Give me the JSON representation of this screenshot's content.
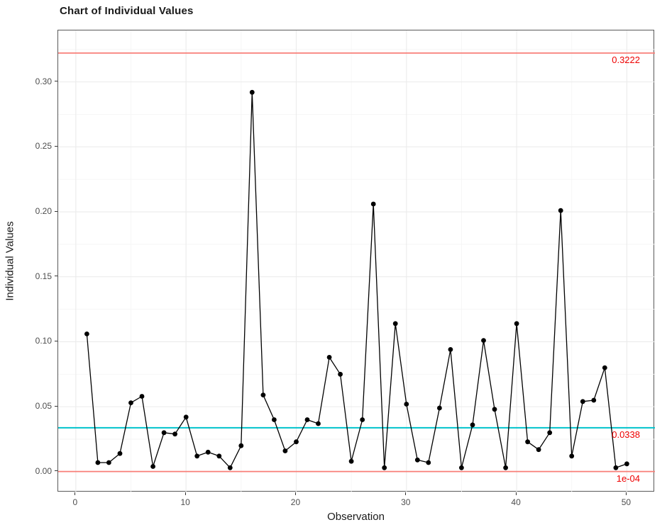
{
  "title": "Chart of Individual Values",
  "chart_data": {
    "type": "line",
    "title": "Chart of Individual Values",
    "xlabel": "Observation",
    "ylabel": "Individual Values",
    "x": [
      1,
      2,
      3,
      4,
      5,
      6,
      7,
      8,
      9,
      10,
      11,
      12,
      13,
      14,
      15,
      16,
      17,
      18,
      19,
      20,
      21,
      22,
      23,
      24,
      25,
      26,
      27,
      28,
      29,
      30,
      31,
      32,
      33,
      34,
      35,
      36,
      37,
      38,
      39,
      40,
      41,
      42,
      43,
      44,
      45,
      46,
      47,
      48,
      49,
      50
    ],
    "values": [
      0.106,
      0.007,
      0.007,
      0.014,
      0.053,
      0.058,
      0.004,
      0.03,
      0.029,
      0.042,
      0.012,
      0.015,
      0.012,
      0.003,
      0.02,
      0.292,
      0.059,
      0.04,
      0.016,
      0.023,
      0.04,
      0.037,
      0.088,
      0.075,
      0.008,
      0.04,
      0.206,
      0.003,
      0.114,
      0.052,
      0.009,
      0.007,
      0.049,
      0.094,
      0.003,
      0.036,
      0.101,
      0.048,
      0.003,
      0.114,
      0.023,
      0.017,
      0.03,
      0.201,
      0.012,
      0.054,
      0.055,
      0.08,
      0.003,
      0.006
    ],
    "upper_limit": {
      "value": 0.3222,
      "label": "0.3222"
    },
    "center_line": {
      "value": 0.0338,
      "label": "0.0338"
    },
    "lower_limit": {
      "value": 0.0001,
      "label": "1e-04"
    },
    "x_ticks": [
      0,
      10,
      20,
      30,
      40,
      50
    ],
    "x_minor_ticks": [
      5,
      15,
      25,
      35,
      45
    ],
    "y_ticks": [
      0,
      0.05,
      0.1,
      0.15,
      0.2,
      0.25,
      0.3
    ],
    "y_tick_labels": [
      "0.00",
      "0.05",
      "0.10",
      "0.15",
      "0.20",
      "0.25",
      "0.30"
    ],
    "y_minor_ticks": [
      0.025,
      0.075,
      0.125,
      0.175,
      0.225,
      0.275,
      0.325
    ],
    "x_domain": [
      -1.6,
      52.55
    ],
    "y_domain": [
      -0.0159,
      0.3396
    ],
    "grid": true,
    "legend": false,
    "colors": {
      "series": "#000000",
      "limit_line": "#f87f78",
      "center_line": "#00c2cc",
      "annotation_text": "#ee0000",
      "grid_major": "#ebebeb",
      "grid_minor": "#f5f5f5",
      "panel_border": "#595959",
      "tick_text": "#4d4d4d",
      "axis_title_text": "#1a1a1a"
    }
  }
}
